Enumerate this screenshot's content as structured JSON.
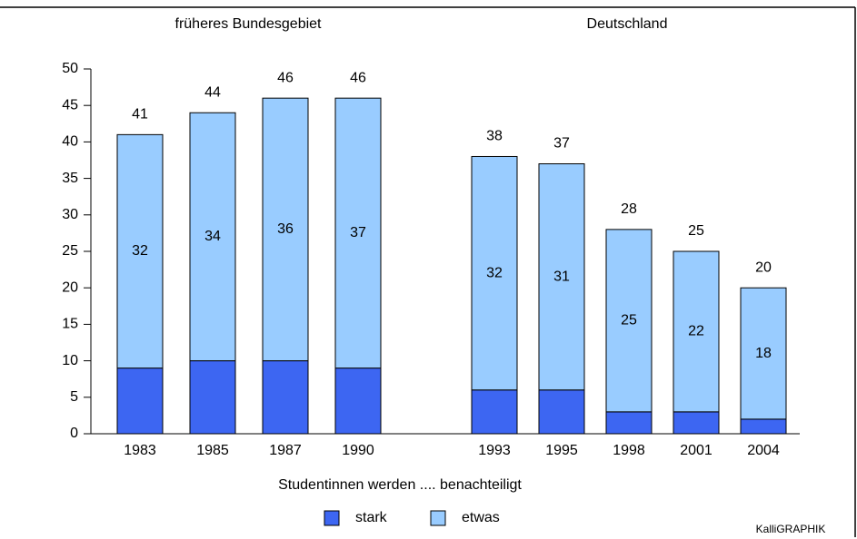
{
  "chart_data": {
    "type": "stacked_bar",
    "groups": [
      {
        "name": "früheres Bundesgebiet",
        "categories": [
          "1983",
          "1985",
          "1987",
          "1990"
        ]
      },
      {
        "name": "Deutschland",
        "categories": [
          "1993",
          "1995",
          "1998",
          "2001",
          "2004"
        ]
      }
    ],
    "series": [
      {
        "name": "stark",
        "color": "#3d66f2",
        "values": [
          9,
          10,
          10,
          9,
          6,
          6,
          3,
          3,
          2
        ]
      },
      {
        "name": "etwas",
        "color": "#99ccff",
        "values": [
          32,
          34,
          36,
          37,
          32,
          31,
          25,
          22,
          18
        ]
      }
    ],
    "totals": [
      41,
      44,
      46,
      46,
      38,
      37,
      28,
      25,
      20
    ],
    "ylim": [
      0,
      50
    ],
    "yticks": [
      0,
      5,
      10,
      15,
      20,
      25,
      30,
      35,
      40,
      45,
      50
    ],
    "legend_title": "Studentinnen werden .... benachteiligt",
    "source": "KalliGRAPHIK"
  }
}
